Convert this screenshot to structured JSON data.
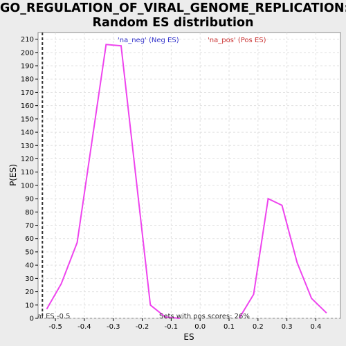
{
  "chart_data": {
    "type": "line",
    "title_line1": "GO_REGULATION_OF_VIRAL_GENOME_REPLICATION:",
    "title_line2": "Random ES distribution",
    "xlabel": "ES",
    "ylabel": "P(ES)",
    "xlim": [
      -0.56,
      0.485
    ],
    "ylim": [
      0,
      215
    ],
    "xticks": [
      -0.5,
      -0.4,
      -0.3,
      -0.2,
      -0.1,
      0.0,
      0.1,
      0.2,
      0.3,
      0.4
    ],
    "xtick_labels": [
      "-0.5",
      "-0.4",
      "-0.3",
      "-0.2",
      "-0.1",
      "0.0",
      "0.1",
      "0.2",
      "0.3",
      "0.4"
    ],
    "yticks": [
      0,
      10,
      20,
      30,
      40,
      50,
      60,
      70,
      80,
      90,
      100,
      110,
      120,
      130,
      140,
      150,
      160,
      170,
      180,
      190,
      200,
      210
    ],
    "grid": true,
    "series": [
      {
        "name": "'na_neg' (Neg ES)",
        "color": "#ee44ee",
        "x": [
          -0.53,
          -0.48,
          -0.425,
          -0.325,
          -0.273,
          -0.172,
          -0.12,
          -0.07
        ],
        "y": [
          7,
          26,
          57,
          206,
          205,
          10,
          1,
          0
        ]
      },
      {
        "name": "'na_pos' (Pos ES)",
        "color": "#ee44ee",
        "x": [
          0.135,
          0.185,
          0.235,
          0.283,
          0.335,
          0.385,
          0.437
        ],
        "y": [
          0,
          18,
          90,
          85,
          42,
          15,
          4
        ]
      }
    ],
    "legend": [
      {
        "label": "'na_neg' (Neg ES)",
        "color": "#3333cc"
      },
      {
        "label": "'na_pos' (Pos ES)",
        "color": "#cc3333"
      }
    ],
    "legend_placement": "top-center",
    "actual_es_x": -0.545,
    "actual_es_label": "al ES -0.5",
    "footnote": "Sets with pos scores: 26%"
  }
}
